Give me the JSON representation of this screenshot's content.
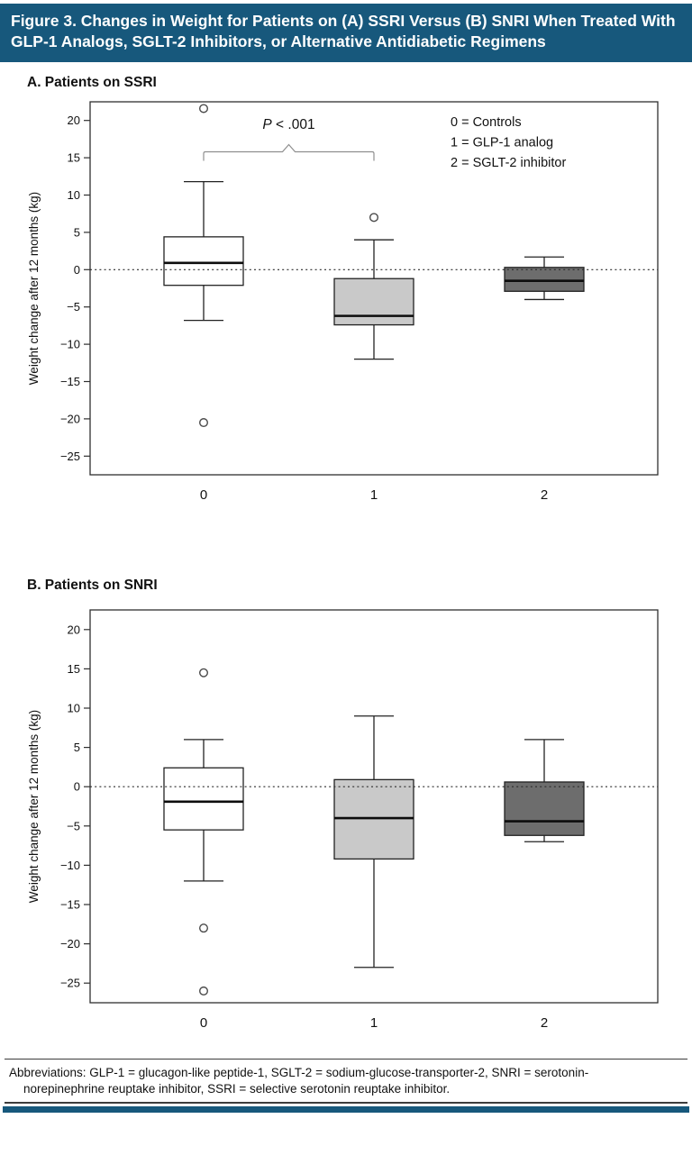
{
  "header": {
    "title": "Figure 3. Changes in Weight for Patients on (A) SSRI Versus (B) SNRI When Treated With GLP-1 Analogs, SGLT-2 Inhibitors, or Alternative Antidiabetic Regimens",
    "bar_color": "#17587c",
    "text_color": "#ffffff"
  },
  "chart_data": [
    {
      "type": "boxplot",
      "title": "A. Patients on SSRI",
      "ylabel": "Weight change after 12 months (kg)",
      "xlabel": "",
      "ylim": [
        -27.5,
        22.5
      ],
      "yticks": [
        20,
        15,
        10,
        5,
        0,
        -5,
        -10,
        -15,
        -20,
        -25
      ],
      "zero_reference_line": 0,
      "grid": false,
      "categories": [
        "0",
        "1",
        "2"
      ],
      "legend": {
        "position": "top-right",
        "entries": [
          "0 = Controls",
          "1 = GLP-1 analog",
          "2 = SGLT-2 inhibitor"
        ]
      },
      "annotation": {
        "text": "P < .001",
        "italic_prefix": "P",
        "rest": " < .001",
        "between_groups": [
          0,
          1
        ],
        "bracket_y": 15.8,
        "text_y": 18.9
      },
      "box_colors": [
        "#ffffff",
        "#c9c9c9",
        "#6d6d6d"
      ],
      "series": [
        {
          "name": "Controls",
          "category": "0",
          "whisker_low": -6.8,
          "q1": -2.1,
          "median": 0.9,
          "q3": 4.4,
          "whisker_high": 11.8,
          "outliers": [
            21.6,
            -20.5
          ]
        },
        {
          "name": "GLP-1 analog",
          "category": "1",
          "whisker_low": -12,
          "q1": -7.4,
          "median": -6.2,
          "q3": -1.2,
          "whisker_high": 4,
          "outliers": [
            7
          ]
        },
        {
          "name": "SGLT-2 inhibitor",
          "category": "2",
          "whisker_low": -4,
          "q1": -2.9,
          "median": -1.5,
          "q3": 0.3,
          "whisker_high": 1.7,
          "outliers": []
        }
      ]
    },
    {
      "type": "boxplot",
      "title": "B. Patients on SNRI",
      "ylabel": "Weight change after 12 months (kg)",
      "xlabel": "",
      "ylim": [
        -27.5,
        22.5
      ],
      "yticks": [
        20,
        15,
        10,
        5,
        0,
        -5,
        -10,
        -15,
        -20,
        -25
      ],
      "zero_reference_line": 0,
      "grid": false,
      "categories": [
        "0",
        "1",
        "2"
      ],
      "legend": null,
      "annotation": null,
      "box_colors": [
        "#ffffff",
        "#c9c9c9",
        "#6d6d6d"
      ],
      "series": [
        {
          "name": "Controls",
          "category": "0",
          "whisker_low": -12,
          "q1": -5.5,
          "median": -1.9,
          "q3": 2.4,
          "whisker_high": 6,
          "outliers": [
            14.5,
            -18,
            -26
          ]
        },
        {
          "name": "GLP-1 analog",
          "category": "1",
          "whisker_low": -23,
          "q1": -9.2,
          "median": -4,
          "q3": 0.9,
          "whisker_high": 9,
          "outliers": []
        },
        {
          "name": "SGLT-2 inhibitor",
          "category": "2",
          "whisker_low": -7,
          "q1": -6.2,
          "median": -4.4,
          "q3": 0.6,
          "whisker_high": 6,
          "outliers": []
        }
      ]
    }
  ],
  "footer": {
    "abbreviations": "Abbreviations: GLP-1 = glucagon-like peptide-1, SGLT-2 = sodium-glucose-transporter-2, SNRI = serotonin-norepinephrine reuptake inhibitor, SSRI = selective serotonin reuptake inhibitor.",
    "rule_color": "#3c3c3c",
    "accent_bar_color": "#17587c"
  }
}
